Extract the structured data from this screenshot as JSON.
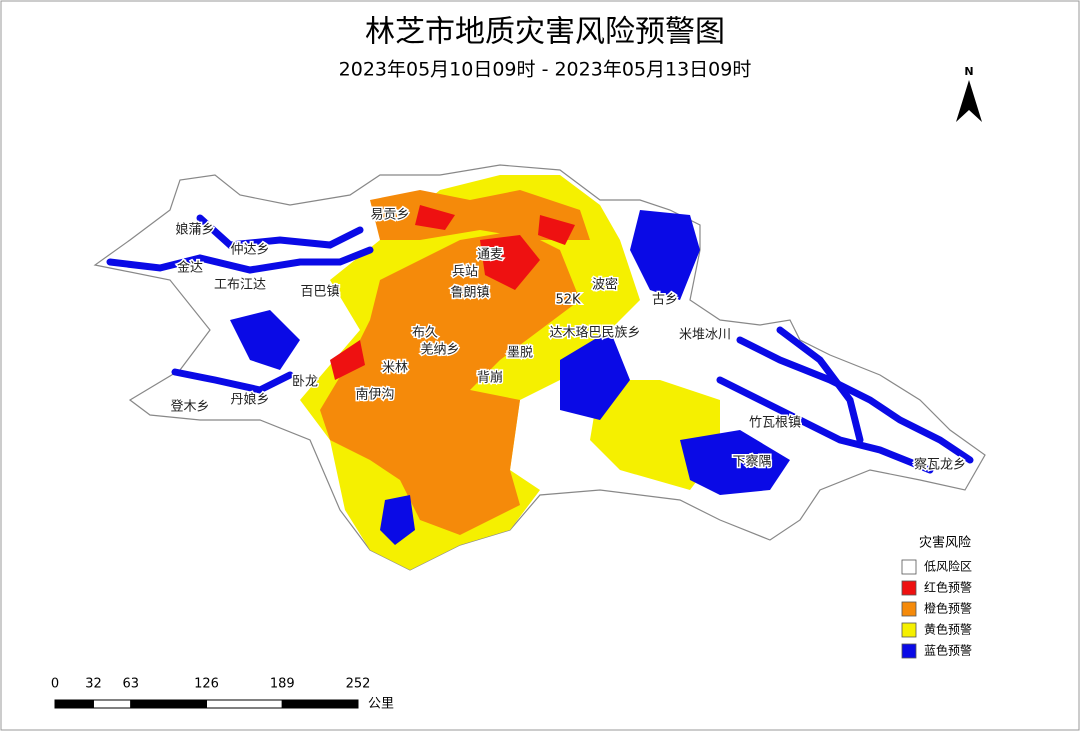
{
  "title": "林芝市地质灾害风险预警图",
  "subtitle": "2023年05月10日09时 - 2023年05月13日09时",
  "north": "N",
  "places": [
    "娘蒲乡",
    "仲达乡",
    "金达",
    "工布江达",
    "百巴镇",
    "易贡乡",
    "兵站",
    "通麦",
    "鲁朗镇",
    "布久",
    "羌纳乡",
    "米林",
    "卧龙",
    "南伊沟",
    "背崩",
    "墨脱",
    "达木珞巴民族乡",
    "52K",
    "波密",
    "古乡",
    "米堆冰川",
    "竹瓦根镇",
    "下察隅",
    "察瓦龙乡",
    "登木乡",
    "丹娘乡"
  ],
  "legend": {
    "title": "灾害风险",
    "items": [
      {
        "label": "低风险区",
        "color": "#ffffff"
      },
      {
        "label": "红色预警",
        "color": "#ee1111"
      },
      {
        "label": "橙色预警",
        "color": "#f58a0a"
      },
      {
        "label": "黄色预警",
        "color": "#f5f000"
      },
      {
        "label": "蓝色预警",
        "color": "#0a0ae6"
      }
    ]
  },
  "scale_bar": {
    "ticks": [
      0,
      32,
      63,
      126,
      189,
      252
    ],
    "unit": "公里"
  }
}
